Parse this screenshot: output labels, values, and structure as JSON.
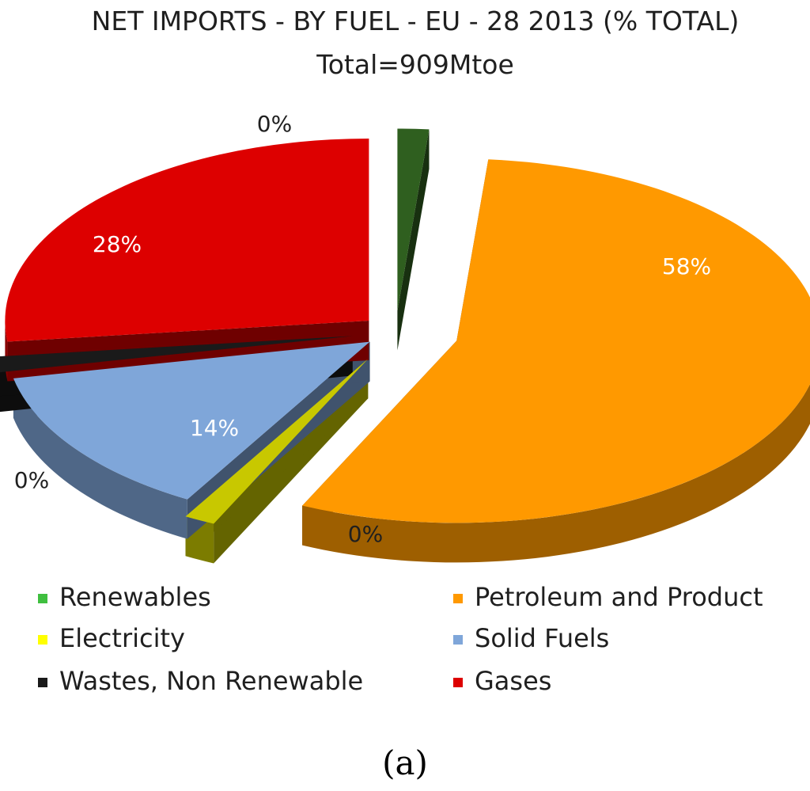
{
  "chart_data": {
    "type": "pie",
    "title": "NET IMPORTS - BY FUEL - EU - 28 2013 (% TOTAL)",
    "subtitle": "Total=909Mtoe",
    "caption": "(a)",
    "unit": "%",
    "legend_position": "bottom",
    "style_3d": true,
    "exploded": true,
    "slices": [
      {
        "name": "Renewables",
        "value": 0,
        "label": "0%",
        "color": "#2f5f1f",
        "legend_color": "#3fbf3f"
      },
      {
        "name": "Petroleum and Product",
        "value": 58,
        "label": "58%",
        "color": "#ff9900",
        "legend_color": "#ff9900"
      },
      {
        "name": "Electricity",
        "value": 0,
        "label": "0%",
        "color": "#c8c800",
        "legend_color": "#ffff00"
      },
      {
        "name": "Solid Fuels",
        "value": 14,
        "label": "14%",
        "color": "#7fa6d9",
        "legend_color": "#7fa6d9"
      },
      {
        "name": "Wastes, Non Renewable",
        "value": 0,
        "label": "0%",
        "color": "#1a1a1a",
        "legend_color": "#1a1a1a"
      },
      {
        "name": "Gases",
        "value": 28,
        "label": "28%",
        "color": "#dd0000",
        "legend_color": "#dd0000"
      }
    ],
    "legend_order": [
      "Renewables",
      "Petroleum and Product",
      "Electricity",
      "Solid Fuels",
      "Wastes, Non Renewable",
      "Gases"
    ]
  }
}
